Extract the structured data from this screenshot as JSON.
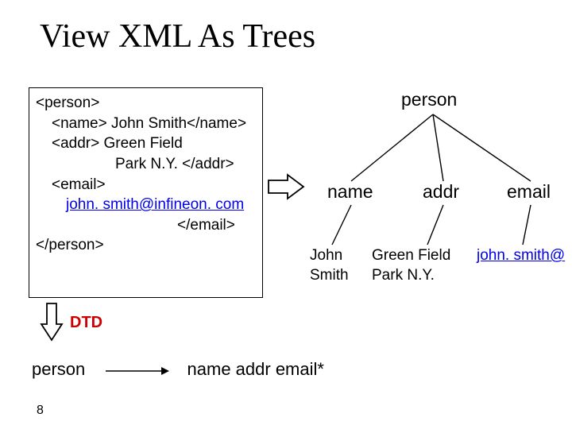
{
  "title": "View XML As Trees",
  "xml": {
    "l1": "<person>",
    "l2": "<name> John Smith</name>",
    "l3": "<addr> Green Field",
    "l4": "Park N.Y. </addr>",
    "l5": "<email>",
    "l6": "john. smith@infineon. com",
    "l7": "</email>",
    "l8": "</person>"
  },
  "dtd_label": "DTD",
  "grammar": {
    "lhs": "person",
    "rhs": "name  addr  email*"
  },
  "tree": {
    "root": "person",
    "children": [
      "name",
      "addr",
      "email"
    ],
    "leaves": {
      "name": "John\nSmith",
      "addr": "Green Field\nPark N.Y.",
      "email": "john. smith@"
    },
    "line_color": "#000000",
    "line_width": 1.4
  },
  "arrows": {
    "outline_color": "#000000",
    "fill_color": "#ffffff"
  },
  "page_number": "8",
  "colors": {
    "title": "#000000",
    "dtd": "#cc0000",
    "link": "#0000ee",
    "background": "#ffffff"
  }
}
